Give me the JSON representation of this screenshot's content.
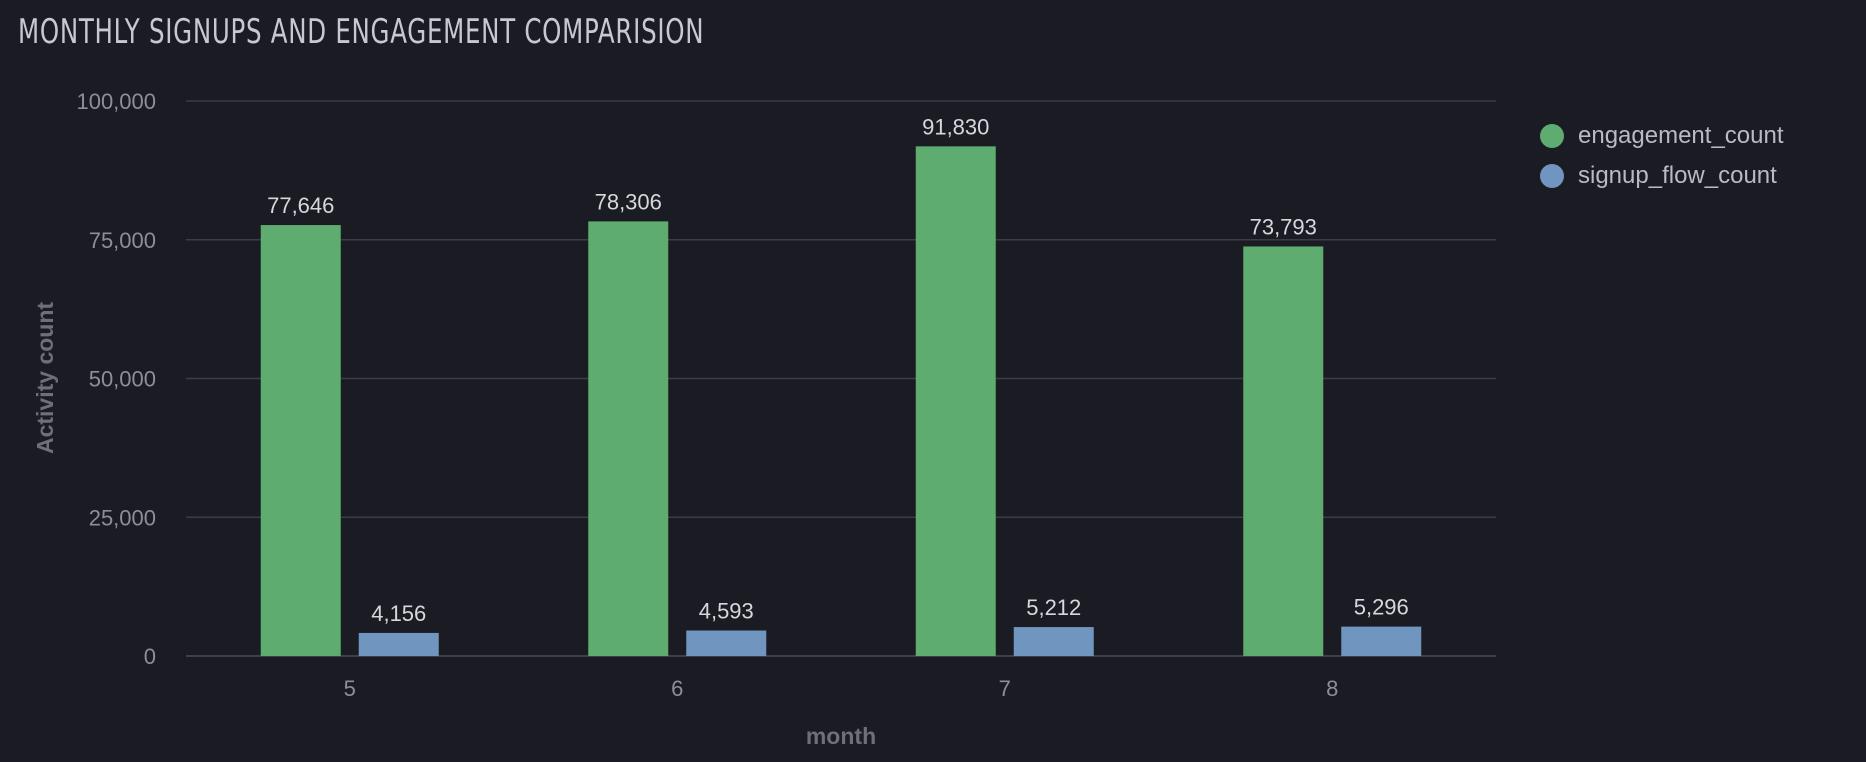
{
  "chart_data": {
    "type": "bar",
    "title": "MONTHLY SIGNUPS AND ENGAGEMENT COMPARISION",
    "xlabel": "month",
    "ylabel": "Activity count",
    "categories": [
      "5",
      "6",
      "7",
      "8"
    ],
    "series": [
      {
        "name": "engagement_count",
        "values": [
          77646,
          78306,
          91830,
          73793
        ],
        "labels": [
          "77,646",
          "78,306",
          "91,830",
          "73,793"
        ],
        "color": "#5eac6f"
      },
      {
        "name": "signup_flow_count",
        "values": [
          4156,
          4593,
          5212,
          5296
        ],
        "labels": [
          "4,156",
          "4,593",
          "5,212",
          "5,296"
        ],
        "color": "#7096c0"
      }
    ],
    "ylim": [
      0,
      100000
    ],
    "yticks": [
      0,
      25000,
      50000,
      75000,
      100000
    ],
    "ytick_labels": [
      "0",
      "25,000",
      "50,000",
      "75,000",
      "100,000"
    ],
    "grid": true,
    "legend_position": "top-right",
    "colors": {
      "background": "#1a1b23",
      "grid": "#3a3c46",
      "axis_text": "#8d8f98",
      "label_text": "#d6d8de"
    }
  }
}
